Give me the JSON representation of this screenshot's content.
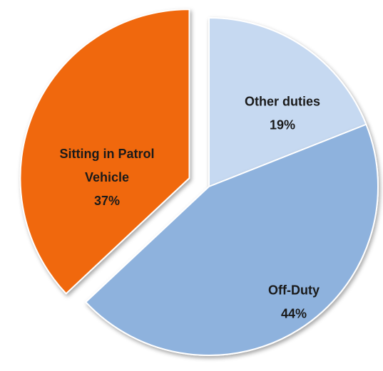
{
  "chart_data": {
    "type": "pie",
    "categories": [
      "Other duties",
      "Off-Duty",
      "Sitting in Patrol Vehicle"
    ],
    "values": [
      19,
      44,
      37
    ],
    "value_labels": [
      "19%",
      "44%",
      "37%"
    ],
    "colors": [
      "#c6d9f1",
      "#8eb2dd",
      "#f0680a"
    ],
    "exploded": [
      false,
      false,
      true
    ]
  }
}
